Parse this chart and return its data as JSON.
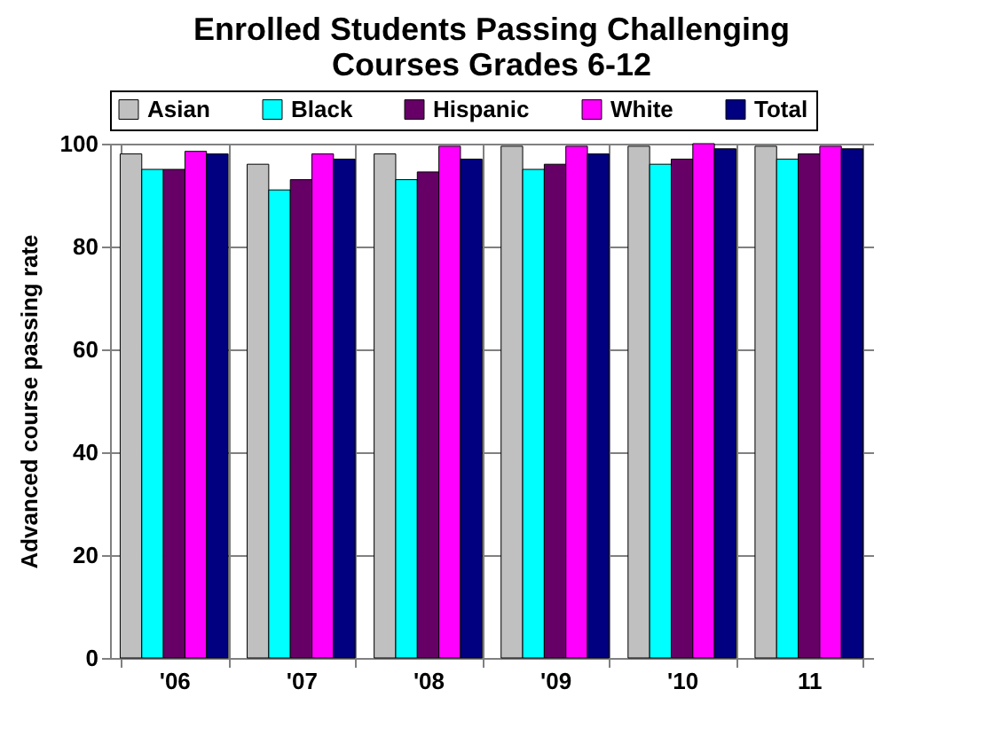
{
  "chart_data": {
    "type": "bar",
    "title": "Enrolled Students Passing Challenging Courses Grades 6-12",
    "ylabel": "Advanced course passing rate",
    "categories": [
      "'06",
      "'07",
      "'08",
      "'09",
      "'10",
      "11"
    ],
    "series": [
      {
        "name": "Asian",
        "color": "#c0c0c0",
        "values": [
          98,
          96,
          98,
          99.5,
          99.5,
          99.5
        ]
      },
      {
        "name": "Black",
        "color": "#00ffff",
        "values": [
          95,
          91,
          93,
          95,
          96,
          97
        ]
      },
      {
        "name": "Hispanic",
        "color": "#660066",
        "values": [
          95,
          93,
          94.5,
          96,
          97,
          98
        ]
      },
      {
        "name": "White",
        "color": "#ff00ff",
        "values": [
          98.5,
          98,
          99.5,
          99.5,
          100,
          99.5
        ]
      },
      {
        "name": "Total",
        "color": "#000080",
        "values": [
          98,
          97,
          97,
          98,
          99,
          99
        ]
      }
    ],
    "ylim": [
      0,
      100
    ],
    "yticks": [
      0,
      20,
      40,
      60,
      80,
      100
    ],
    "grid": true,
    "legend": "top"
  }
}
